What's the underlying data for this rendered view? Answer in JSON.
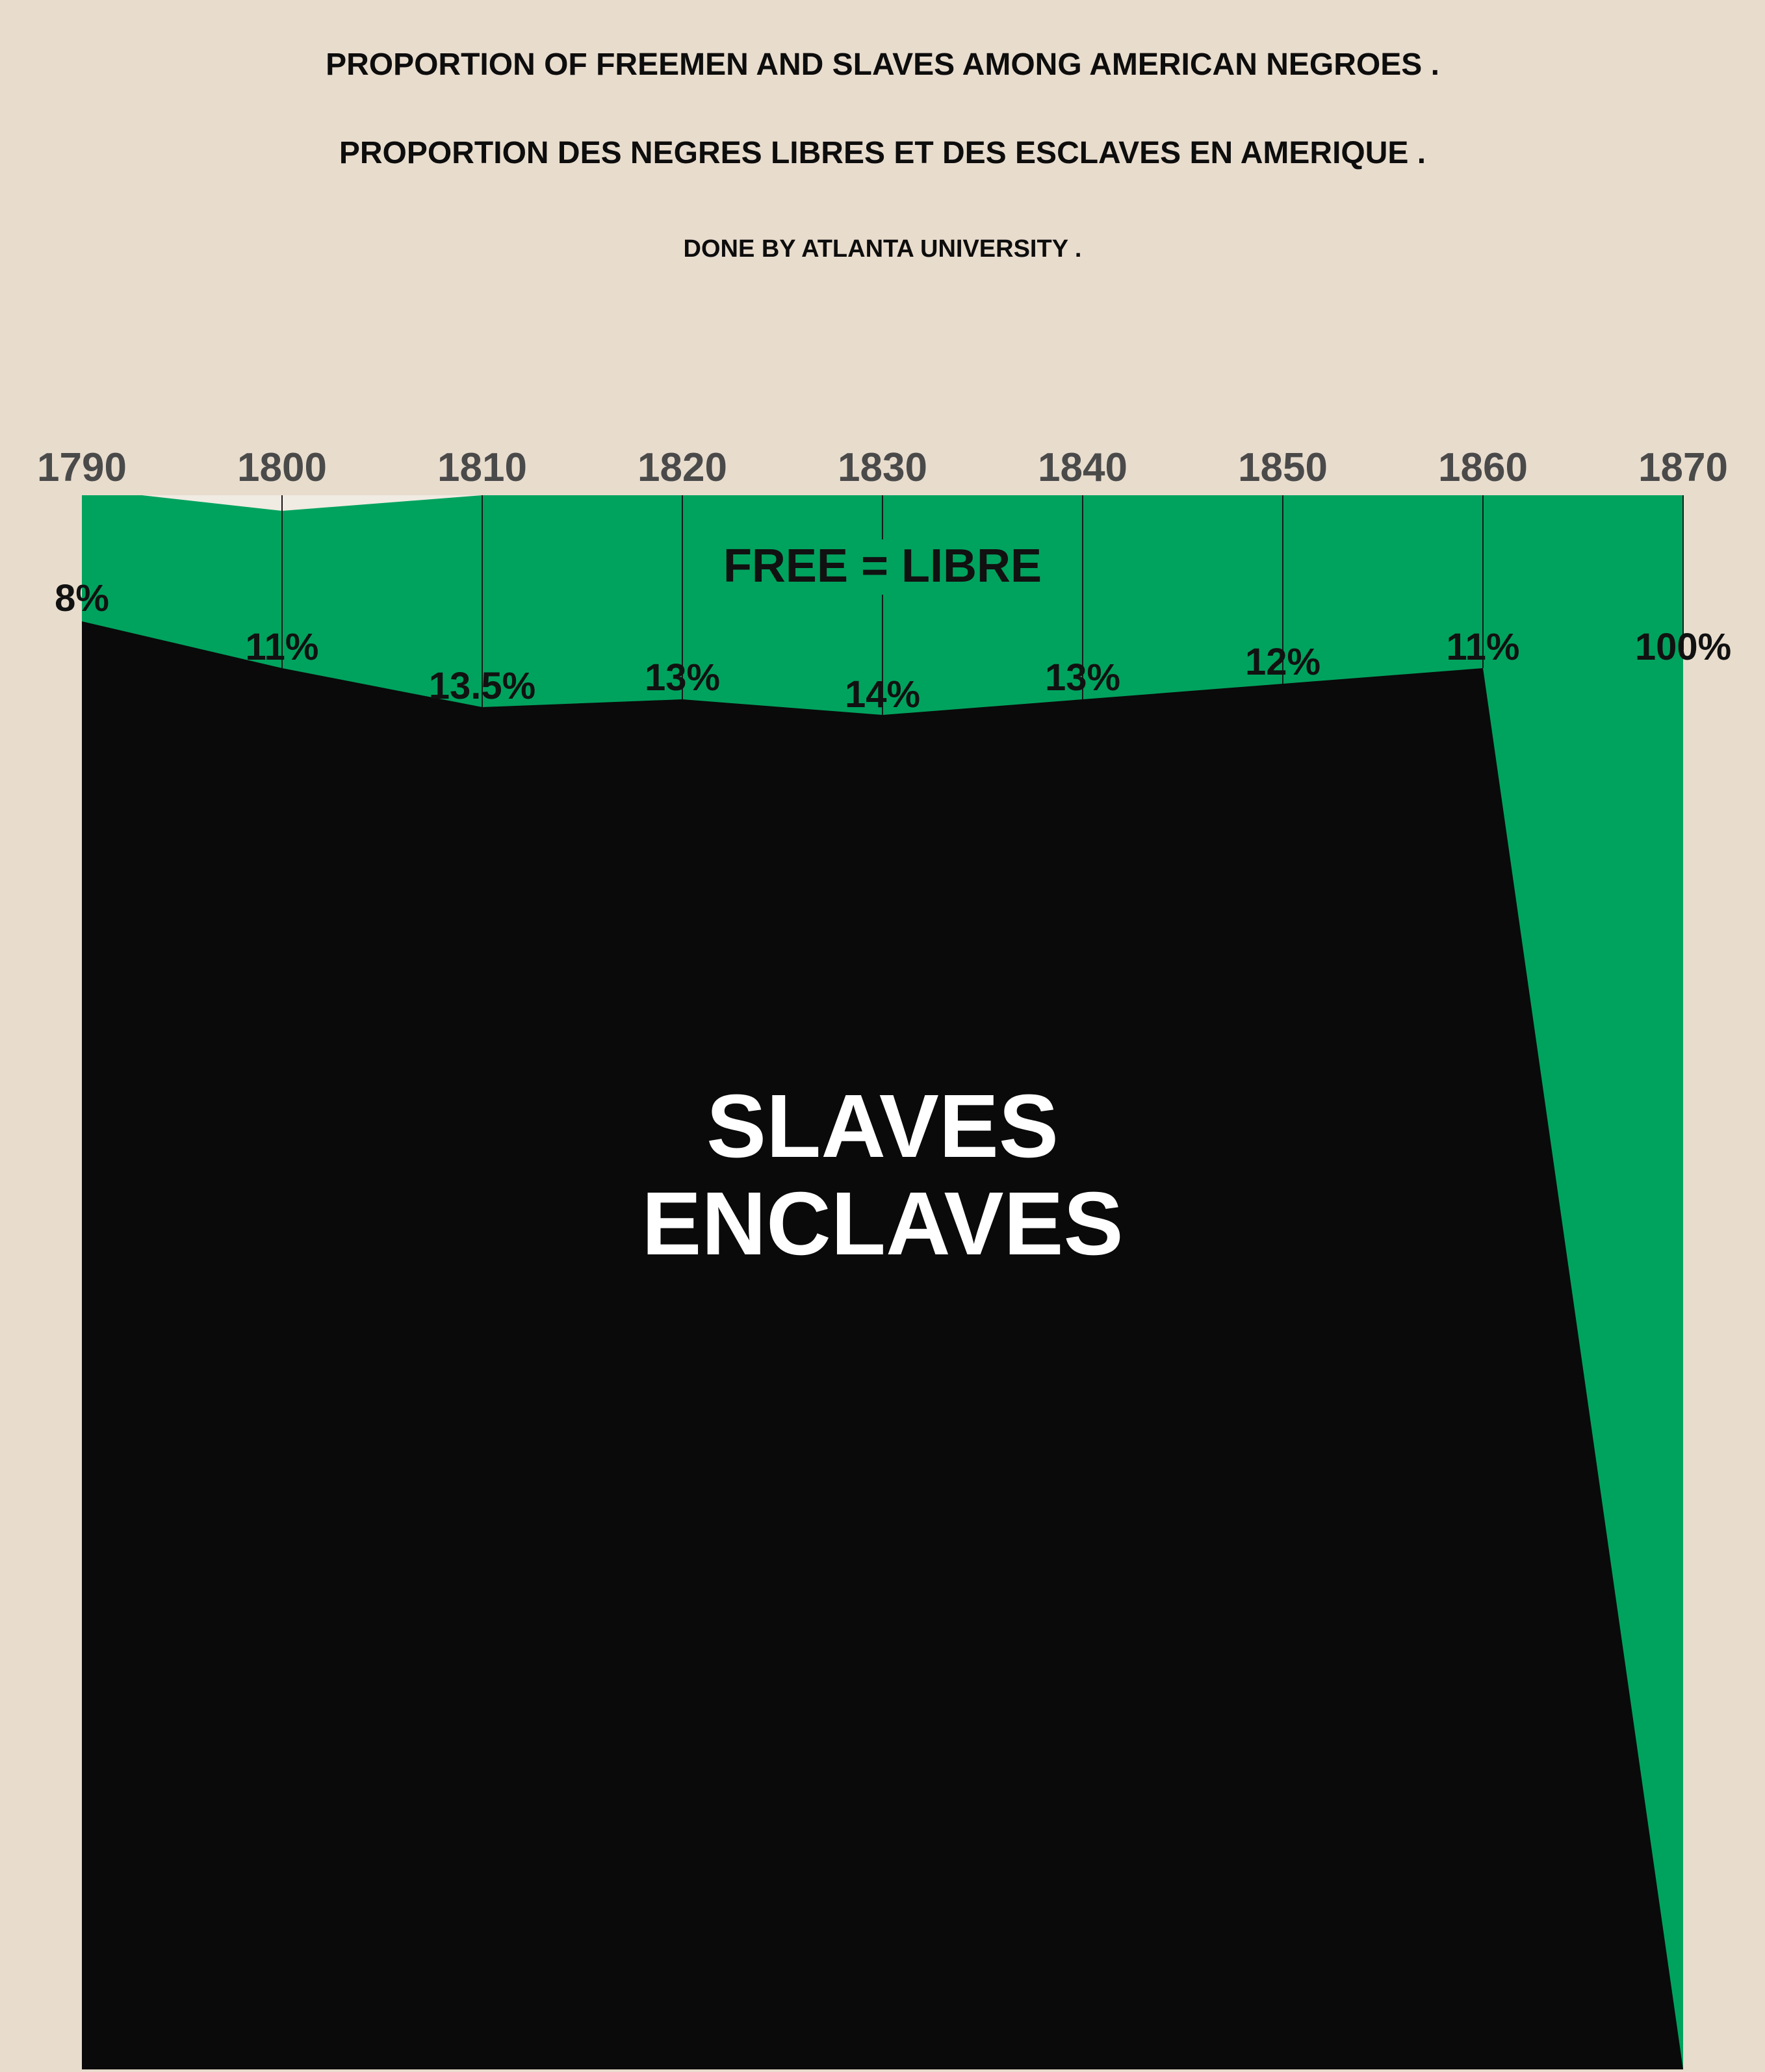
{
  "titles": {
    "line1": "PROPORTION OF FREEMEN AND SLAVES AMONG AMERICAN NEGROES .",
    "line2": "PROPORTION DES NEGRES LIBRES ET DES ESCLAVES EN AMERIQUE .",
    "line3": "DONE BY ATLANTA UNIVERSITY ."
  },
  "colors": {
    "background": "#e8dccd",
    "free": "#00a35e",
    "slaves": "#0a0a0a",
    "year_label": "#4a4a4a",
    "region_label_dark": "#111111",
    "region_label_light": "#ffffff"
  },
  "chart_data": {
    "type": "area",
    "x": [
      1790,
      1800,
      1810,
      1820,
      1830,
      1840,
      1850,
      1860,
      1870
    ],
    "tick_labels": [
      "1790",
      "1800",
      "1810",
      "1820",
      "1830",
      "1840",
      "1850",
      "1860",
      "1870"
    ],
    "free_percent": [
      8,
      11,
      13.5,
      13,
      14,
      13,
      12,
      11,
      100
    ],
    "data_labels": [
      "8%",
      "11%",
      "13.5%",
      "13%",
      "14%",
      "13%",
      "12%",
      "11%",
      "100%"
    ],
    "series": [
      {
        "name": "FREE = LIBRE",
        "values": [
          8,
          11,
          13.5,
          13,
          14,
          13,
          12,
          11,
          100
        ]
      },
      {
        "name": "SLAVES ENCLAVES",
        "values": [
          92,
          89,
          86.5,
          87,
          86,
          87,
          88,
          89,
          0
        ]
      }
    ],
    "region_labels": {
      "free": "FREE = LIBRE",
      "slaves_line1": "SLAVES",
      "slaves_line2": "ENCLAVES"
    },
    "xlim": [
      1790,
      1870
    ],
    "legend": "none",
    "grid": "vertical lines at each decade"
  }
}
